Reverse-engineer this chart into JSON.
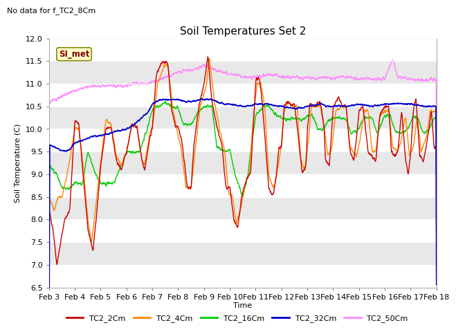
{
  "title": "Soil Temperatures Set 2",
  "subtitle": "No data for f_TC2_8Cm",
  "ylabel": "Soil Temperature (C)",
  "xlabel": "Time",
  "annotation": "SI_met",
  "ylim": [
    6.5,
    12.0
  ],
  "yticks": [
    6.5,
    7.0,
    7.5,
    8.0,
    8.5,
    9.0,
    9.5,
    10.0,
    10.5,
    11.0,
    11.5,
    12.0
  ],
  "xtick_labels": [
    "Feb 3",
    "Feb 4",
    "Feb 5",
    "Feb 6",
    "Feb 7",
    "Feb 8",
    "Feb 9",
    "Feb 10",
    "Feb 11",
    "Feb 12",
    "Feb 13",
    "Feb 14",
    "Feb 15",
    "Feb 16",
    "Feb 17",
    "Feb 18"
  ],
  "colors": {
    "TC2_2Cm": "#cc0000",
    "TC2_4Cm": "#ff8800",
    "TC2_16Cm": "#00cc00",
    "TC2_32Cm": "#0000cc",
    "TC2_50Cm": "#ff88ff"
  },
  "bg_color": "#ffffff",
  "plot_bg_color": "#e8e8e8",
  "annotation_bg": "#ffffcc",
  "annotation_border": "#888800",
  "grid_color": "#ffffff",
  "band_colors": [
    "#ffffff",
    "#e8e8e8"
  ]
}
